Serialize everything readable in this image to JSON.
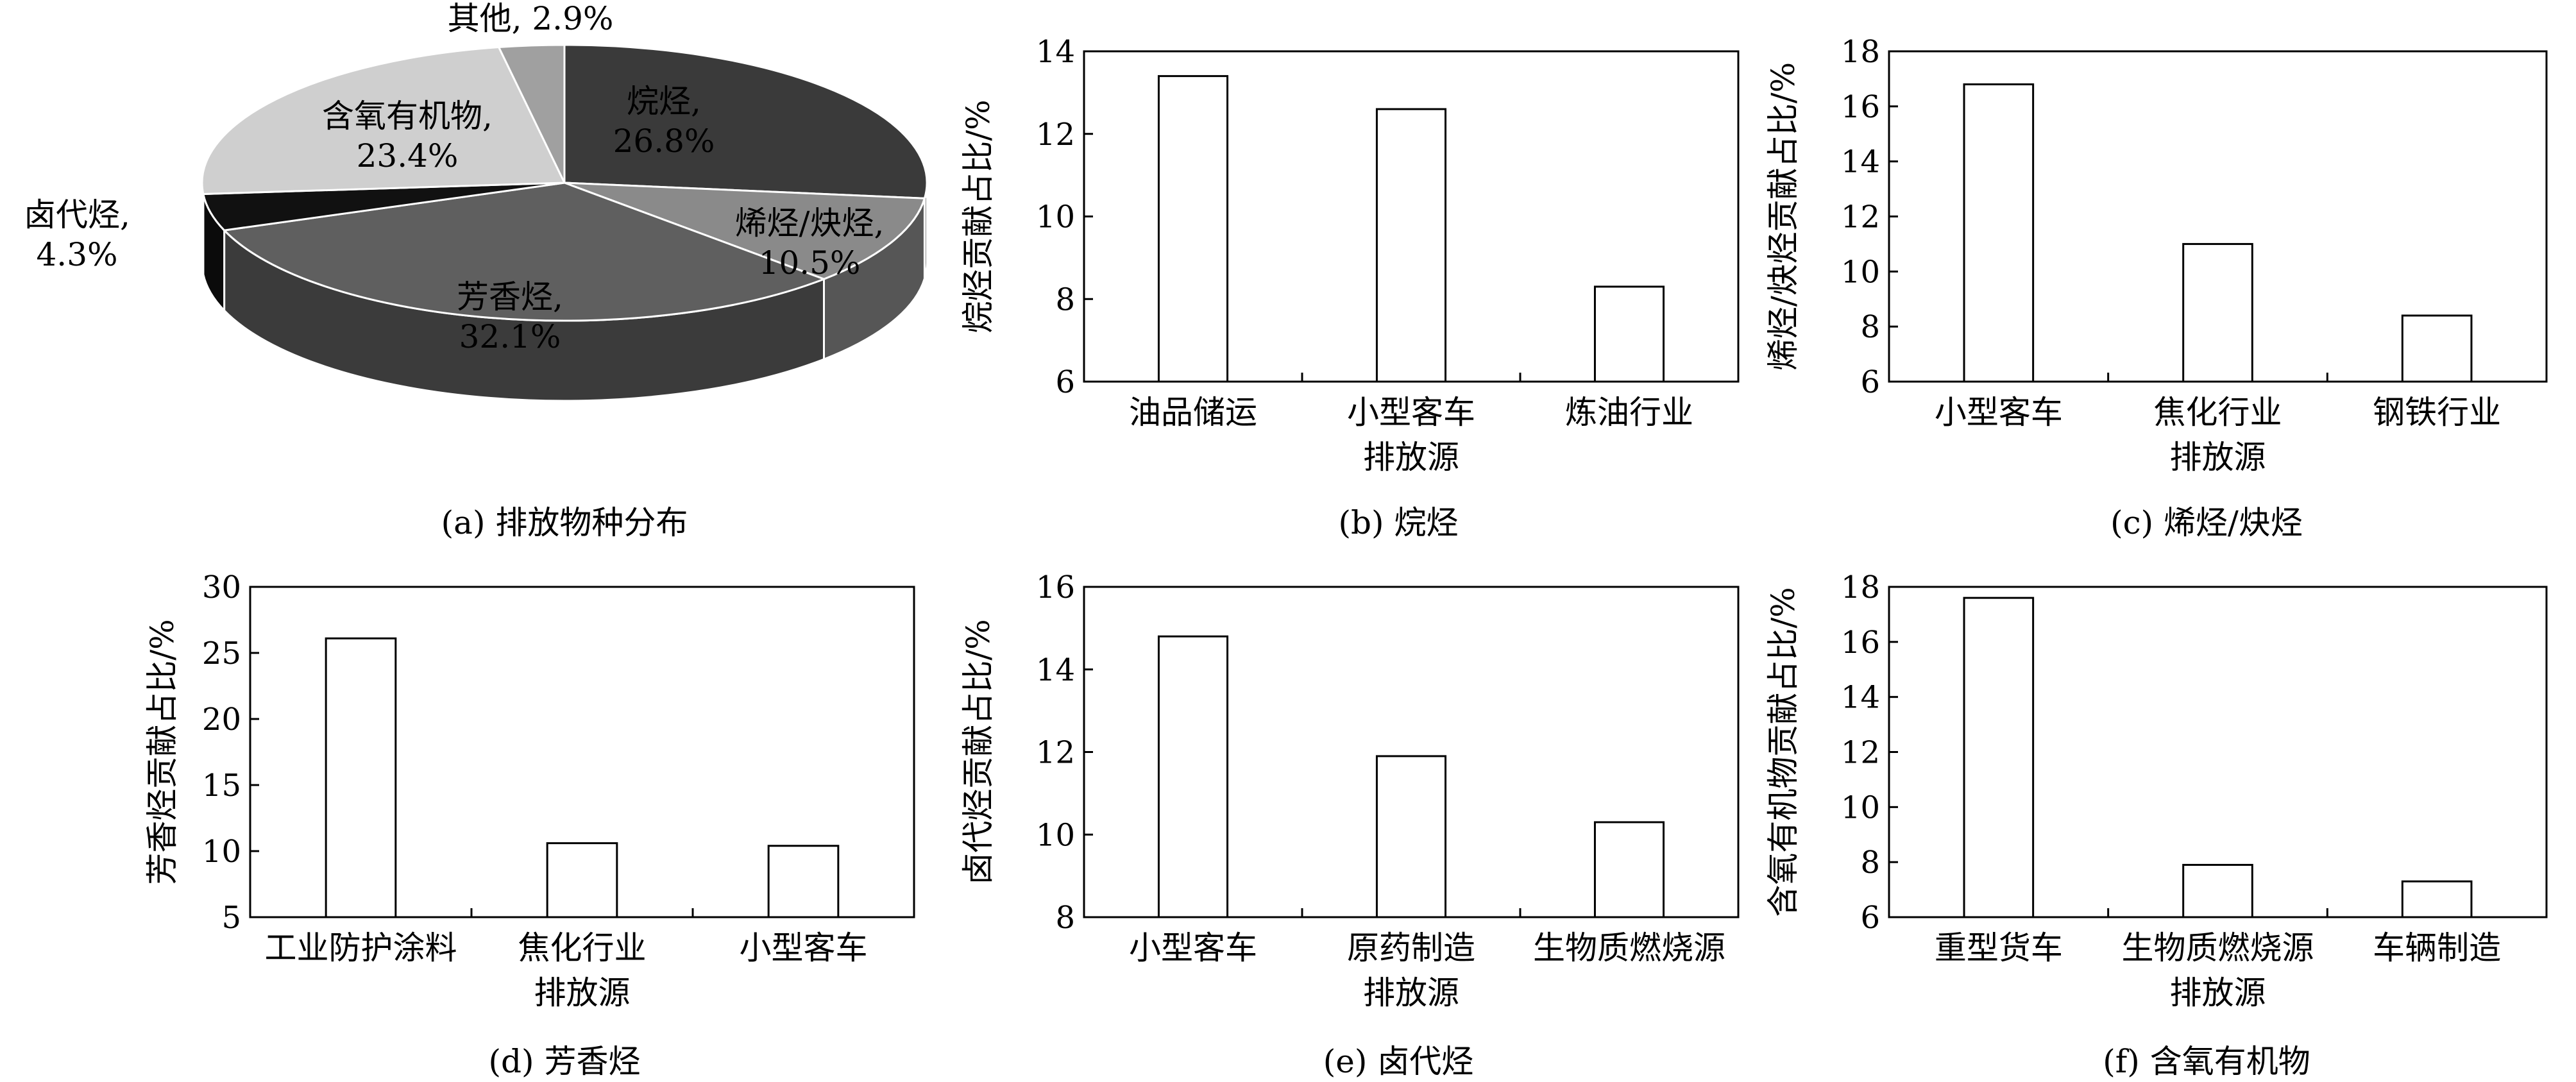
{
  "chart_data": [
    {
      "type": "pie",
      "caption": "(a) 排放物种分布",
      "slices": [
        {
          "label": "烷烃",
          "value": 26.8,
          "text": "26.8%",
          "color": "#3a3a3a"
        },
        {
          "label": "烯烃/炔烃",
          "value": 10.5,
          "text": "10.5%",
          "color": "#8a8a8a"
        },
        {
          "label": "芳香烃",
          "value": 32.1,
          "text": "32.1%",
          "color": "#5f5f5f"
        },
        {
          "label": "卤代烃",
          "value": 4.3,
          "text": "4.3%",
          "color": "#111111"
        },
        {
          "label": "含氧有机物",
          "value": 23.4,
          "text": "23.4%",
          "color": "#cfcfcf"
        },
        {
          "label": "其他",
          "value": 2.9,
          "text": "2.9%",
          "color": "#a0a0a0"
        }
      ]
    },
    {
      "type": "bar",
      "caption": "(b) 烷烃",
      "ylabel": "烷烃贡献占比/%",
      "ylim": [
        6,
        14
      ],
      "yticks": [
        6,
        8,
        10,
        12,
        14
      ],
      "categories": [
        "油品储运",
        "小型客车",
        "炼油行业"
      ],
      "xlabel": "排放源",
      "values": [
        13.4,
        12.6,
        8.3
      ]
    },
    {
      "type": "bar",
      "caption": "(c) 烯烃/炔烃",
      "ylabel": "烯烃/炔烃贡献占比/%",
      "ylim": [
        6,
        18
      ],
      "yticks": [
        6,
        8,
        10,
        12,
        14,
        16,
        18
      ],
      "categories": [
        "小型客车",
        "焦化行业",
        "钢铁行业"
      ],
      "xlabel": "排放源",
      "values": [
        16.8,
        11.0,
        8.4
      ]
    },
    {
      "type": "bar",
      "caption": "(d) 芳香烃",
      "ylabel": "芳香烃贡献占比/%",
      "ylim": [
        5,
        30
      ],
      "yticks": [
        5,
        10,
        15,
        20,
        25,
        30
      ],
      "categories": [
        "工业防护涂料",
        "焦化行业",
        "小型客车"
      ],
      "xlabel": "排放源",
      "values": [
        26.1,
        10.6,
        10.4
      ]
    },
    {
      "type": "bar",
      "caption": "(e) 卤代烃",
      "ylabel": "卤代烃贡献占比/%",
      "ylim": [
        8,
        16
      ],
      "yticks": [
        8,
        10,
        12,
        14,
        16
      ],
      "categories": [
        "小型客车",
        "原药制造",
        "生物质燃烧源"
      ],
      "xlabel": "排放源",
      "values": [
        14.8,
        11.9,
        10.3
      ]
    },
    {
      "type": "bar",
      "caption": "(f) 含氧有机物",
      "ylabel": "含氧有机物贡献占比/%",
      "ylim": [
        6,
        18
      ],
      "yticks": [
        6,
        8,
        10,
        12,
        14,
        16,
        18
      ],
      "categories": [
        "重型货车",
        "生物质燃烧源",
        "车辆制造"
      ],
      "xlabel": "排放源",
      "values": [
        17.6,
        7.9,
        7.3
      ]
    }
  ]
}
